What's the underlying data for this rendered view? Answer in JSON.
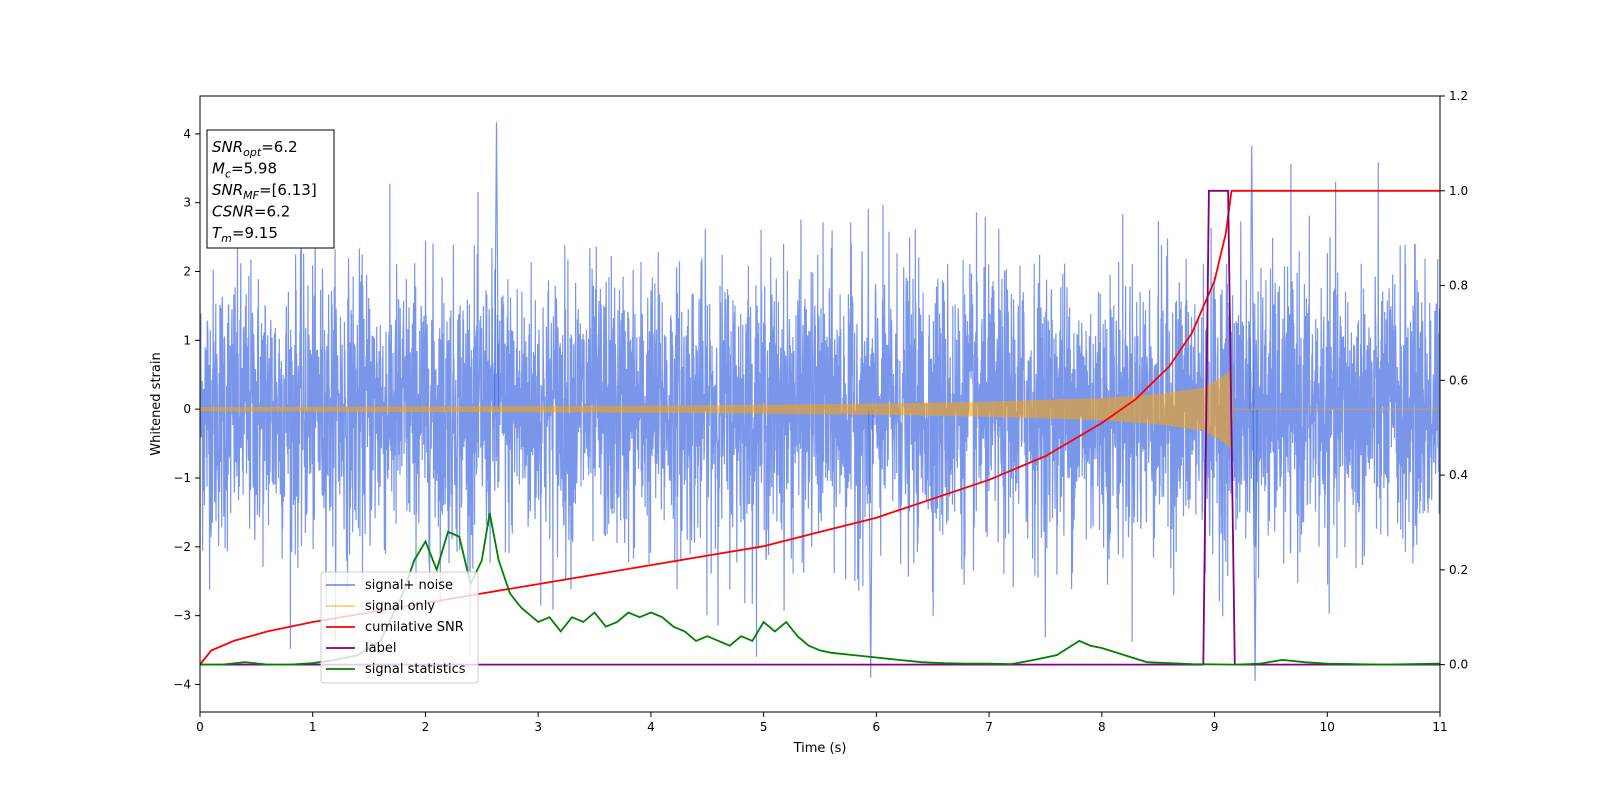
{
  "chart_data": {
    "type": "line",
    "title": "",
    "xlabel": "Time (s)",
    "ylabel": "Whitened strain",
    "xlim": [
      0,
      11
    ],
    "ylim": [
      -4.4,
      4.55
    ],
    "y2lim": [
      -0.1,
      1.2
    ],
    "x_ticks": [
      0,
      1,
      2,
      3,
      4,
      5,
      6,
      7,
      8,
      9,
      10,
      11
    ],
    "y_ticks": [
      -4,
      -3,
      -2,
      -1,
      0,
      1,
      2,
      3,
      4
    ],
    "y2_ticks": [
      "0.0",
      "0.2",
      "0.4",
      "0.6",
      "0.8",
      "1.0",
      "1.2"
    ],
    "grid": false,
    "legend_position": "lower-left",
    "annotation": [
      {
        "var": "SNR",
        "sub": "opt",
        "value": "=6.2"
      },
      {
        "var": "M",
        "sub": "c",
        "value": "=5.98"
      },
      {
        "var": "SNR",
        "sub": "MF",
        "value": "=[6.13]"
      },
      {
        "var": "CSNR",
        "sub": "",
        "value": "=6.2"
      },
      {
        "var": "T",
        "sub": "m",
        "value": "=9.15"
      }
    ],
    "series": [
      {
        "name": "signal+ noise",
        "axis": "left",
        "color": "#4169e1",
        "description_values": {
          "mean": 0.0,
          "std": 1.0,
          "x_range": [
            0,
            11
          ],
          "notable_peaks": [
            [
              2.63,
              4.17
            ],
            [
              9.33,
              3.83
            ],
            [
              9.36,
              -3.95
            ],
            [
              5.95,
              -3.9
            ]
          ]
        }
      },
      {
        "name": "signal only",
        "axis": "left",
        "color": "#ffa500",
        "envelope": {
          "x": [
            0,
            2,
            4,
            6,
            7,
            8,
            8.5,
            8.9,
            9.1,
            9.15,
            9.16,
            11
          ],
          "amplitude": [
            0.03,
            0.04,
            0.05,
            0.08,
            0.11,
            0.16,
            0.22,
            0.31,
            0.5,
            0.6,
            0.0,
            0.0
          ]
        }
      },
      {
        "name": "cumilative SNR",
        "axis": "right",
        "color": "#ff0000",
        "x": [
          0,
          0.1,
          0.3,
          0.6,
          1,
          1.5,
          2,
          2.5,
          3,
          3.5,
          4,
          4.5,
          5,
          5.5,
          6,
          6.5,
          7,
          7.5,
          8,
          8.3,
          8.6,
          8.8,
          9,
          9.1,
          9.15,
          11
        ],
        "values": [
          0.0,
          0.03,
          0.05,
          0.07,
          0.09,
          0.11,
          0.13,
          0.15,
          0.17,
          0.19,
          0.21,
          0.23,
          0.25,
          0.28,
          0.31,
          0.35,
          0.39,
          0.44,
          0.51,
          0.56,
          0.63,
          0.7,
          0.81,
          0.91,
          1.0,
          1.0
        ]
      },
      {
        "name": "label",
        "axis": "right",
        "color": "#800080",
        "x": [
          0,
          8.9,
          8.95,
          9.12,
          9.18,
          11
        ],
        "values": [
          0,
          0,
          1,
          1,
          0,
          0
        ]
      },
      {
        "name": "signal statistics",
        "axis": "right",
        "color": "#008000",
        "x": [
          0,
          0.2,
          0.4,
          0.6,
          0.8,
          1.0,
          1.2,
          1.4,
          1.6,
          1.8,
          1.9,
          2.0,
          2.1,
          2.2,
          2.3,
          2.4,
          2.5,
          2.57,
          2.65,
          2.75,
          2.85,
          3.0,
          3.1,
          3.2,
          3.3,
          3.4,
          3.5,
          3.6,
          3.7,
          3.8,
          3.9,
          4.0,
          4.1,
          4.2,
          4.3,
          4.4,
          4.5,
          4.6,
          4.7,
          4.8,
          4.9,
          5.0,
          5.1,
          5.2,
          5.3,
          5.4,
          5.5,
          5.6,
          5.8,
          6.0,
          6.2,
          6.4,
          6.6,
          6.8,
          7.0,
          7.2,
          7.4,
          7.6,
          7.8,
          7.9,
          8.0,
          8.2,
          8.4,
          8.8,
          9.2,
          9.4,
          9.6,
          9.8,
          10.0,
          10.5,
          11.0
        ],
        "values": [
          0.0,
          0.0,
          0.005,
          0.0,
          0.0,
          0.003,
          0.01,
          0.02,
          0.05,
          0.15,
          0.22,
          0.26,
          0.2,
          0.28,
          0.27,
          0.17,
          0.22,
          0.32,
          0.22,
          0.15,
          0.12,
          0.09,
          0.1,
          0.07,
          0.1,
          0.09,
          0.11,
          0.08,
          0.09,
          0.11,
          0.1,
          0.11,
          0.1,
          0.08,
          0.07,
          0.05,
          0.06,
          0.05,
          0.04,
          0.06,
          0.05,
          0.09,
          0.07,
          0.09,
          0.06,
          0.04,
          0.03,
          0.025,
          0.02,
          0.015,
          0.01,
          0.005,
          0.003,
          0.002,
          0.002,
          0.001,
          0.01,
          0.02,
          0.05,
          0.04,
          0.035,
          0.02,
          0.005,
          0.001,
          0.0,
          0.002,
          0.01,
          0.005,
          0.002,
          0.0,
          0.002
        ]
      }
    ]
  }
}
